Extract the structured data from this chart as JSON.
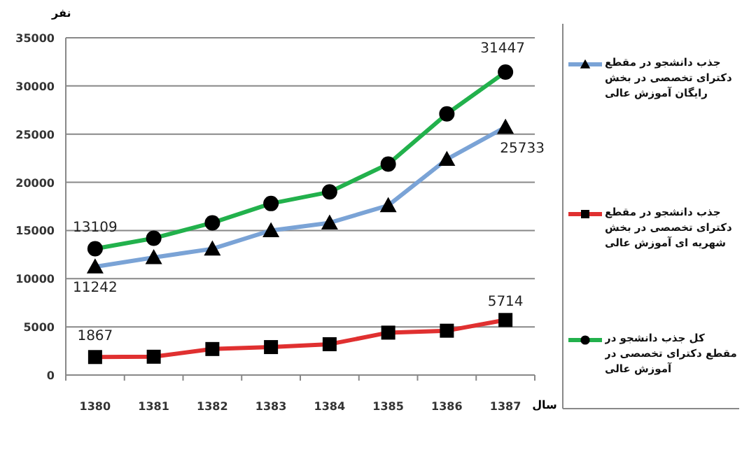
{
  "chart_data": {
    "type": "line",
    "xlabel": "سال",
    "ylabel": "نفر",
    "categories": [
      "1380",
      "1381",
      "1382",
      "1383",
      "1384",
      "1385",
      "1386",
      "1387"
    ],
    "ylim": [
      0,
      35000
    ],
    "yticks": [
      0,
      5000,
      10000,
      15000,
      20000,
      25000,
      30000,
      35000
    ],
    "grid": "y",
    "legend": "right",
    "line_style": "solid",
    "series": [
      {
        "name": "جذب دانشجو در مقطع دکترای تخصصی در بخش رایگان آموزش عالی",
        "color": "#7aa3d6",
        "marker": "triangle",
        "values": [
          11242,
          12200,
          13100,
          15000,
          15800,
          17600,
          22400,
          25733
        ],
        "value_labels": [
          "11242",
          null,
          null,
          null,
          null,
          null,
          null,
          "25733"
        ]
      },
      {
        "name": "جذب دانشجو در مقطع دکترای تخصصی در بخش شهریه ای آموزش عالی",
        "color": "#e03030",
        "marker": "square",
        "values": [
          1867,
          1900,
          2700,
          2900,
          3200,
          4400,
          4600,
          5714
        ],
        "value_labels": [
          "1867",
          null,
          null,
          null,
          null,
          null,
          null,
          "5714"
        ]
      },
      {
        "name": "کل جذب دانشجو در مقطع دکترای تخصصی در آموزش عالی",
        "color": "#22b14c",
        "marker": "circle",
        "values": [
          13109,
          14200,
          15800,
          17800,
          19000,
          21900,
          27100,
          31447
        ],
        "value_labels": [
          "13109",
          null,
          null,
          null,
          null,
          null,
          null,
          "31447"
        ]
      }
    ]
  }
}
